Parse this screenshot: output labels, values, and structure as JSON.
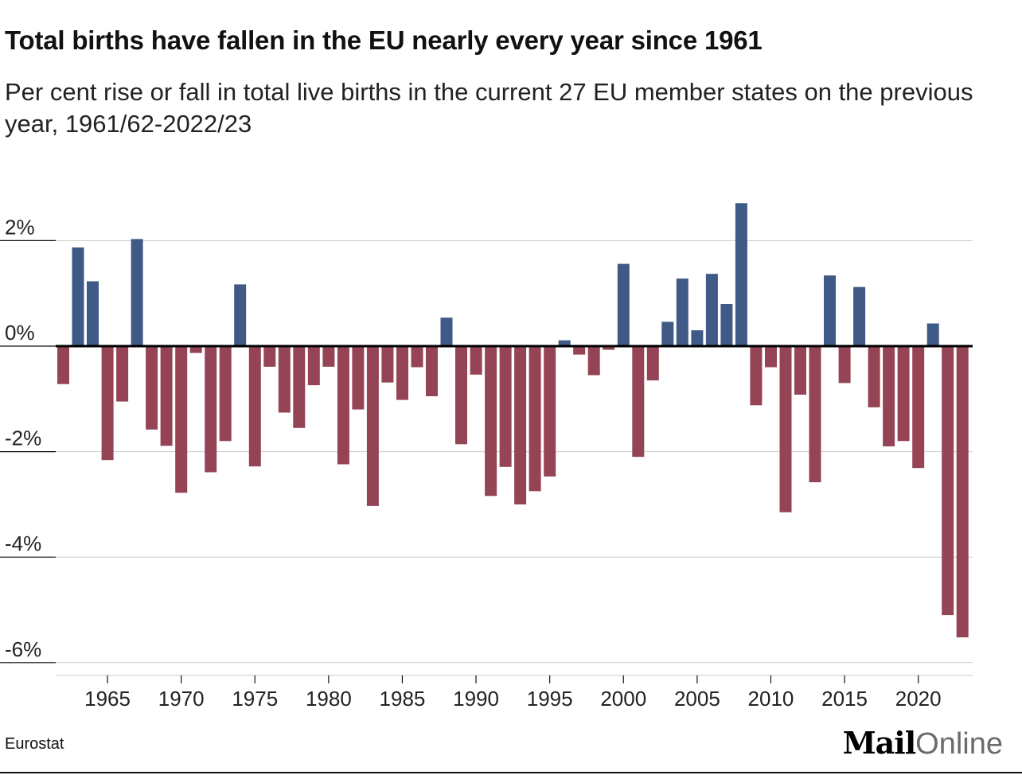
{
  "title": "Total births have fallen in the EU nearly every year since 1961",
  "subtitle": "Per cent rise or fall in total live births in the current 27 EU member states on the previous year, 1961/62-2022/23",
  "source": "Eurostat",
  "logo": {
    "mail": "Mail",
    "online": "Online"
  },
  "colors": {
    "positive": "#3f5a87",
    "negative": "#954456",
    "zero_line": "#000000",
    "grid": "#cccccc"
  },
  "chart_data": {
    "type": "bar",
    "x": [
      1962,
      1963,
      1964,
      1965,
      1966,
      1967,
      1968,
      1969,
      1970,
      1971,
      1972,
      1973,
      1974,
      1975,
      1976,
      1977,
      1978,
      1979,
      1980,
      1981,
      1982,
      1983,
      1984,
      1985,
      1986,
      1987,
      1988,
      1989,
      1990,
      1991,
      1992,
      1993,
      1994,
      1995,
      1996,
      1997,
      1998,
      1999,
      2000,
      2001,
      2002,
      2003,
      2004,
      2005,
      2006,
      2007,
      2008,
      2009,
      2010,
      2011,
      2012,
      2013,
      2014,
      2015,
      2016,
      2017,
      2018,
      2019,
      2020,
      2021,
      2022,
      2023
    ],
    "values": [
      -0.72,
      1.87,
      1.23,
      -2.16,
      -1.05,
      2.03,
      -1.58,
      -1.89,
      -2.78,
      -0.13,
      -2.39,
      -1.8,
      1.17,
      -2.28,
      -0.39,
      -1.26,
      -1.55,
      -0.74,
      -0.39,
      -2.24,
      -1.2,
      -3.03,
      -0.69,
      -1.02,
      -0.4,
      -0.95,
      0.54,
      -1.86,
      -0.54,
      -2.84,
      -2.29,
      -3.0,
      -2.75,
      -2.47,
      0.11,
      -0.16,
      -0.55,
      -0.07,
      1.56,
      -2.1,
      -0.65,
      0.46,
      1.28,
      0.3,
      1.37,
      0.8,
      2.71,
      -1.12,
      -0.4,
      -3.15,
      -0.92,
      -2.58,
      1.34,
      -0.7,
      1.12,
      -1.16,
      -1.9,
      -1.8,
      -2.31,
      0.43,
      -5.1,
      -5.52
    ],
    "xticks": [
      "1965",
      "1970",
      "1975",
      "1980",
      "1985",
      "1990",
      "1995",
      "2000",
      "2005",
      "2010",
      "2015",
      "2020"
    ],
    "yticks": [
      "2%",
      "0%",
      "-2%",
      "-4%",
      "-6%"
    ],
    "ylim": [
      -6,
      2.5
    ],
    "xlabel": "",
    "ylabel": "",
    "grid": true
  }
}
